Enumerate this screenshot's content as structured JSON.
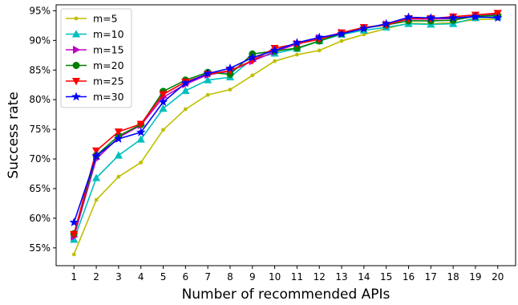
{
  "chart_data": {
    "type": "line",
    "title": "",
    "xlabel": "Number of recommended APIs",
    "ylabel": "Success rate",
    "x": [
      1,
      2,
      3,
      4,
      5,
      6,
      7,
      8,
      9,
      10,
      11,
      12,
      13,
      14,
      15,
      16,
      17,
      18,
      19,
      20
    ],
    "xlim": [
      0.2,
      20.8
    ],
    "ylim": [
      52,
      96
    ],
    "yticks": [
      55,
      60,
      65,
      70,
      75,
      80,
      85,
      90,
      95
    ],
    "ytick_labels": [
      "55%",
      "60%",
      "65%",
      "70%",
      "75%",
      "80%",
      "85%",
      "90%",
      "95%"
    ],
    "grid": false,
    "legend_position": "top-left",
    "series": [
      {
        "name": "m=5",
        "color": "#bfbf00",
        "marker": "dot",
        "values": [
          53.9,
          63.1,
          67.0,
          69.4,
          74.9,
          78.4,
          80.8,
          81.7,
          84.1,
          86.5,
          87.6,
          88.3,
          89.9,
          91.0,
          92.0,
          92.9,
          92.8,
          93.0,
          93.5,
          93.6
        ]
      },
      {
        "name": "m=10",
        "color": "#00bfbf",
        "marker": "triangle-up",
        "values": [
          56.4,
          66.8,
          70.6,
          73.3,
          78.5,
          81.5,
          83.3,
          83.8,
          86.9,
          87.8,
          88.6,
          89.9,
          91.0,
          91.7,
          92.2,
          92.8,
          92.7,
          92.8,
          93.8,
          94.0
        ]
      },
      {
        "name": "m=15",
        "color": "#bf00bf",
        "marker": "triangle-right",
        "values": [
          56.9,
          70.0,
          73.6,
          75.7,
          80.4,
          82.6,
          84.2,
          84.8,
          86.5,
          88.1,
          89.4,
          90.4,
          91.3,
          92.1,
          92.7,
          93.6,
          93.6,
          93.7,
          94.1,
          94.4
        ]
      },
      {
        "name": "m=20",
        "color": "#007f00",
        "marker": "circle",
        "values": [
          57.4,
          70.6,
          73.9,
          75.8,
          81.4,
          83.3,
          84.6,
          84.3,
          87.7,
          88.2,
          88.7,
          89.9,
          91.2,
          92.1,
          92.6,
          93.3,
          93.3,
          93.4,
          94.1,
          94.2
        ]
      },
      {
        "name": "m=25",
        "color": "#ff0000",
        "marker": "triangle-down",
        "values": [
          57.3,
          71.4,
          74.6,
          75.9,
          80.9,
          83.0,
          84.3,
          84.9,
          86.6,
          88.7,
          89.4,
          90.2,
          91.3,
          92.2,
          92.6,
          93.7,
          93.7,
          94.0,
          94.3,
          94.6
        ]
      },
      {
        "name": "m=30",
        "color": "#0000ff",
        "marker": "star",
        "values": [
          59.3,
          70.5,
          73.4,
          74.5,
          79.6,
          82.8,
          84.4,
          85.3,
          87.1,
          88.3,
          89.6,
          90.5,
          91.1,
          92.0,
          92.8,
          93.9,
          93.8,
          93.8,
          94.0,
          93.8
        ]
      }
    ]
  }
}
